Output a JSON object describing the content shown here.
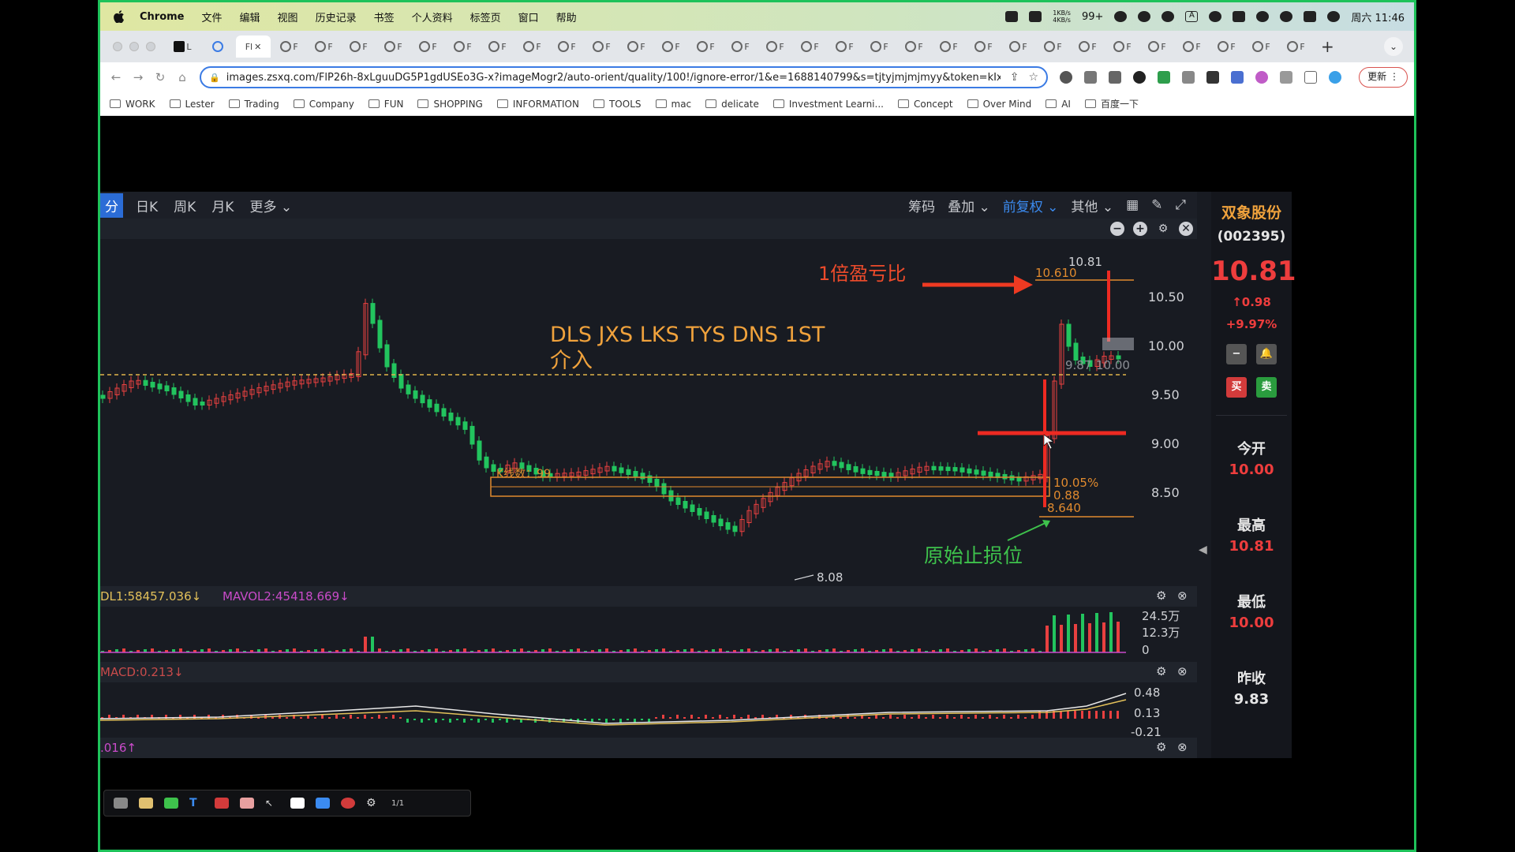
{
  "menubar": {
    "app_name": "Chrome",
    "items": [
      "文件",
      "编辑",
      "视图",
      "历史记录",
      "书签",
      "个人资料",
      "标签页",
      "窗口",
      "帮助"
    ],
    "net_up": "1KB/s",
    "net_down": "4KB/s",
    "badge": "99+",
    "input_method": "A",
    "datetime": "周六 11:46"
  },
  "tabs": {
    "first_tab_label": "L",
    "active_tab_label": "Fl",
    "other_tab_label": "F",
    "other_tab_count": 30
  },
  "toolbar": {
    "url": "images.zsxq.com/FlP26h-8xLguuDG5P1gdUSEo3G-x?imageMogr2/auto-orient/quality/100!/ignore-error/1&e=1688140799&s=tjtyjmjmjmyy&token=kIxb...",
    "update_label": "更新"
  },
  "bookmarks": [
    "WORK",
    "Lester",
    "Trading",
    "Company",
    "FUN",
    "SHOPPING",
    "INFORMATION",
    "TOOLS",
    "mac",
    "delicate",
    "Investment Learni...",
    "Concept",
    "Over Mind",
    "AI",
    "百度一下"
  ],
  "app": {
    "periods": [
      "分",
      "日K",
      "周K",
      "月K",
      "更多"
    ],
    "right_menu": [
      "筹码",
      "叠加",
      "前复权",
      "其他"
    ],
    "colors": {
      "up": "#e84040",
      "down": "#22c45e",
      "accent": "#f0a23c",
      "bg": "#181b22"
    },
    "main_chart": {
      "annotation_rr": "1倍盈亏比",
      "annotation_title_line1": "DLS JXS LKS TYS DNS 1ST",
      "annotation_title_line2": "介入",
      "annotation_stop": "原始止损位",
      "kline_count_label": "K线数：99",
      "label_10610": "10.610",
      "label_1081": "10.81",
      "label_987": "9.87",
      "label_1000": "10.00",
      "label_pct": "10.05%",
      "label_088": "0.88",
      "label_8640": "8.640",
      "label_low": "8.08",
      "y_ticks": [
        "10.50",
        "10.00",
        "9.50",
        "9.00",
        "8.50"
      ]
    },
    "volume": {
      "label1": "DL1:58457.036↓",
      "label2": "MAVOL2:45418.669↓",
      "y_ticks": [
        "24.5万",
        "12.3万",
        "0"
      ]
    },
    "macd": {
      "label": "MACD:0.213↓",
      "y_ticks": [
        "0.48",
        "0.13",
        "-0.21"
      ]
    },
    "last_label": ".016↑"
  },
  "quote": {
    "name": "双象股份",
    "code": "(002395)",
    "price": "10.81",
    "change": "↑0.98",
    "change_pct": "+9.97%",
    "buy_label": "买",
    "sell_label": "卖",
    "open_label": "今开",
    "open_value": "10.00",
    "high_label": "最高",
    "high_value": "10.81",
    "low_label": "最低",
    "low_value": "10.00",
    "prev_close_label": "昨收",
    "prev_close_value": "9.83"
  },
  "drawtools": {
    "page": "1/1"
  }
}
